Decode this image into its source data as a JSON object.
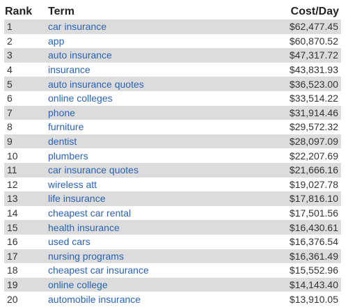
{
  "headers": {
    "rank": "Rank",
    "term": "Term",
    "cost": "Cost/Day"
  },
  "rows": [
    {
      "rank": "1",
      "term": "car insurance",
      "cost": "$62,477.45"
    },
    {
      "rank": "2",
      "term": "app",
      "cost": "$60,870.52"
    },
    {
      "rank": "3",
      "term": "auto insurance",
      "cost": "$47,317.72"
    },
    {
      "rank": "4",
      "term": "insurance",
      "cost": "$43,831.93"
    },
    {
      "rank": "5",
      "term": "auto insurance quotes",
      "cost": "$36,523.00"
    },
    {
      "rank": "6",
      "term": "online colleges",
      "cost": "$33,514.22"
    },
    {
      "rank": "7",
      "term": "phone",
      "cost": "$31,914.46"
    },
    {
      "rank": "8",
      "term": "furniture",
      "cost": "$29,572.32"
    },
    {
      "rank": "9",
      "term": "dentist",
      "cost": "$28,097.09"
    },
    {
      "rank": "10",
      "term": "plumbers",
      "cost": "$22,207.69"
    },
    {
      "rank": "11",
      "term": "car insurance quotes",
      "cost": "$21,666.16"
    },
    {
      "rank": "12",
      "term": "wireless att",
      "cost": "$19,027.78"
    },
    {
      "rank": "13",
      "term": "life insurance",
      "cost": "$17,816.10"
    },
    {
      "rank": "14",
      "term": "cheapest car rental",
      "cost": "$17,501.56"
    },
    {
      "rank": "15",
      "term": "health insurance",
      "cost": "$16,430.61"
    },
    {
      "rank": "16",
      "term": "used cars",
      "cost": "$16,376.54"
    },
    {
      "rank": "17",
      "term": "nursing programs",
      "cost": "$16,361.49"
    },
    {
      "rank": "18",
      "term": "cheapest car insurance",
      "cost": "$15,552.96"
    },
    {
      "rank": "19",
      "term": "online college",
      "cost": "$14,143.40"
    },
    {
      "rank": "20",
      "term": "automobile insurance",
      "cost": "$13,910.05"
    }
  ]
}
